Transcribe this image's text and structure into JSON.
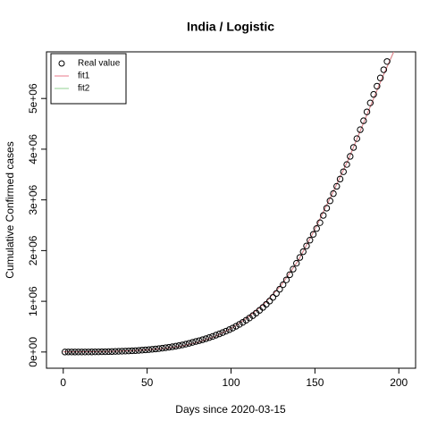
{
  "chart_data": {
    "type": "scatter",
    "title": "India / Logistic",
    "xlabel": "Days since 2020-03-15",
    "ylabel": "Cumulative Confirmed cases",
    "xlim": [
      -10,
      210
    ],
    "ylim": [
      -320000,
      5920000
    ],
    "xticks": [
      0,
      50,
      100,
      150,
      200
    ],
    "yticks": [
      {
        "value": 0,
        "label": "0e+00"
      },
      {
        "value": 1000000,
        "label": "1e+06"
      },
      {
        "value": 2000000,
        "label": "2e+06"
      },
      {
        "value": 3000000,
        "label": "3e+06"
      },
      {
        "value": 4000000,
        "label": "4e+06"
      },
      {
        "value": 5000000,
        "label": "5e+06"
      }
    ],
    "legend": "top-left",
    "series": [
      {
        "name": "Real value",
        "style": "points",
        "color": "#000000",
        "x": [
          1,
          3,
          5,
          7,
          9,
          11,
          13,
          15,
          17,
          19,
          21,
          23,
          25,
          27,
          29,
          31,
          33,
          35,
          37,
          39,
          41,
          43,
          45,
          47,
          49,
          51,
          53,
          55,
          57,
          59,
          61,
          63,
          65,
          67,
          69,
          71,
          73,
          75,
          77,
          79,
          81,
          83,
          85,
          87,
          89,
          91,
          93,
          95,
          97,
          99,
          101,
          103,
          105,
          107,
          109,
          111,
          113,
          115,
          117,
          119,
          121,
          123,
          125,
          127,
          129,
          131,
          133,
          135,
          137,
          139,
          141,
          143,
          145,
          147,
          149,
          151,
          153,
          155,
          157,
          159,
          161,
          163,
          165,
          167,
          169,
          171,
          173,
          175,
          177,
          179,
          181,
          183,
          185,
          187,
          189,
          191,
          193
        ],
        "values": [
          115,
          163,
          232,
          329,
          467,
          662,
          940,
          1334,
          1900,
          2470,
          3220,
          4190,
          5450,
          7090,
          9220,
          12000,
          13800,
          15900,
          18300,
          21100,
          24300,
          27900,
          32100,
          37000,
          41700,
          46900,
          52800,
          59500,
          67000,
          75400,
          85000,
          93900,
          103800,
          114700,
          126700,
          140000,
          154700,
          171000,
          189000,
          207000,
          224000,
          242000,
          262000,
          284000,
          307000,
          332000,
          357000,
          383000,
          411000,
          441000,
          473000,
          508000,
          545000,
          585000,
          627000,
          671000,
          718000,
          768000,
          822000,
          879000,
          940000,
          1005000,
          1077000,
          1155000,
          1238000,
          1327000,
          1422000,
          1525000,
          1635000,
          1750000,
          1864000,
          1978000,
          2092000,
          2206000,
          2320000,
          2435000,
          2550000,
          2694000,
          2837000,
          2981000,
          3124000,
          3268000,
          3411000,
          3555000,
          3698000,
          3858000,
          4034000,
          4209000,
          4385000,
          4561000,
          4736000,
          4912000,
          5081000,
          5243000,
          5405000,
          5567000,
          5730000
        ]
      },
      {
        "name": "fit1",
        "style": "line",
        "color": "#e8798b",
        "x": [
          0,
          10,
          20,
          30,
          40,
          50,
          60,
          70,
          80,
          90,
          100,
          110,
          120,
          130,
          140,
          150,
          160,
          170,
          180,
          190,
          200
        ],
        "values": [
          3000,
          5000,
          9000,
          15000,
          25000,
          42000,
          70000,
          115000,
          190000,
          300000,
          460000,
          680000,
          960000,
          1320000,
          1800000,
          2420000,
          3100000,
          3800000,
          4600000,
          5400000,
          6150000
        ]
      },
      {
        "name": "fit2",
        "style": "line",
        "color": "#90d090",
        "x": [
          0,
          10,
          20,
          30,
          40,
          50,
          60,
          70,
          80,
          90,
          100,
          110,
          120,
          130,
          140,
          150,
          160,
          170,
          180,
          190,
          200
        ],
        "values": [
          3000,
          5000,
          9000,
          15000,
          25000,
          42000,
          70000,
          115000,
          190000,
          300000,
          460000,
          680000,
          960000,
          1320000,
          1800000,
          2420000,
          3100000,
          3800000,
          4600000,
          5400000,
          6140000
        ]
      }
    ]
  }
}
